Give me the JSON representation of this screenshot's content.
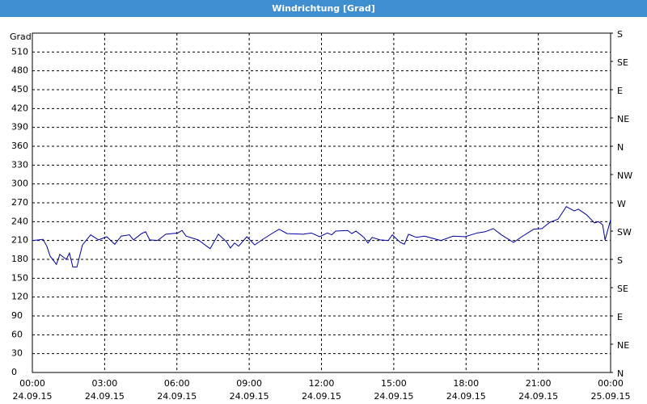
{
  "chart_data": {
    "type": "line",
    "title": "Windrichtung [Grad]",
    "ylabel": "Grad",
    "x": [
      0,
      0.27,
      0.44,
      0.6,
      0.74,
      1.0,
      1.14,
      1.41,
      1.54,
      1.68,
      1.85,
      2.08,
      2.42,
      2.75,
      3.09,
      3.42,
      3.69,
      4.03,
      4.2,
      4.53,
      4.7,
      4.87,
      5.2,
      5.54,
      6.04,
      6.21,
      6.38,
      6.88,
      7.38,
      7.72,
      8.06,
      8.22,
      8.39,
      8.56,
      8.9,
      9.23,
      9.57,
      9.9,
      10.24,
      10.57,
      11.25,
      11.58,
      11.92,
      12.25,
      12.42,
      12.59,
      13.09,
      13.26,
      13.43,
      13.76,
      13.93,
      14.1,
      14.43,
      14.77,
      14.94,
      15.27,
      15.44,
      15.61,
      15.94,
      16.28,
      16.95,
      17.46,
      17.96,
      18.46,
      18.8,
      19.13,
      19.47,
      19.97,
      20.31,
      20.81,
      21.15,
      21.48,
      21.82,
      22.16,
      22.49,
      22.66,
      23.0,
      23.33,
      23.5,
      23.67,
      23.77,
      24.0
    ],
    "series": [
      {
        "name": "Windrichtung",
        "color": "#0000a0",
        "values": [
          210,
          211,
          212,
          201,
          185,
          172,
          188,
          180,
          190,
          168,
          168,
          203,
          219,
          211,
          216,
          204,
          217,
          219,
          211,
          221,
          224,
          211,
          210,
          220,
          222,
          226,
          217,
          211,
          197,
          220,
          208,
          198,
          206,
          201,
          216,
          203,
          212,
          220,
          228,
          221,
          220,
          222,
          216,
          222,
          219,
          225,
          226,
          221,
          225,
          215,
          206,
          215,
          211,
          210,
          219,
          207,
          204,
          220,
          215,
          217,
          210,
          217,
          216,
          222,
          224,
          229,
          219,
          207,
          216,
          228,
          229,
          239,
          244,
          264,
          257,
          260,
          251,
          238,
          240,
          235,
          211,
          243
        ]
      }
    ],
    "xlim": [
      0,
      24
    ],
    "xticks": [
      {
        "value": 0,
        "label": "00:00",
        "date": "24.09.15"
      },
      {
        "value": 3,
        "label": "03:00",
        "date": "24.09.15"
      },
      {
        "value": 6,
        "label": "06:00",
        "date": "24.09.15"
      },
      {
        "value": 9,
        "label": "09:00",
        "date": "24.09.15"
      },
      {
        "value": 12,
        "label": "12:00",
        "date": "24.09.15"
      },
      {
        "value": 15,
        "label": "15:00",
        "date": "24.09.15"
      },
      {
        "value": 18,
        "label": "18:00",
        "date": "24.09.15"
      },
      {
        "value": 21,
        "label": "21:00",
        "date": "24.09.15"
      },
      {
        "value": 24,
        "label": "00:00",
        "date": "25.09.15"
      }
    ],
    "ylim": [
      0,
      540
    ],
    "yticks": [
      0,
      30,
      60,
      90,
      120,
      150,
      180,
      210,
      240,
      270,
      300,
      330,
      360,
      390,
      420,
      450,
      480,
      510
    ],
    "y2lim": [
      0,
      540
    ],
    "y2ticks": [
      {
        "value": 0,
        "label": "N"
      },
      {
        "value": 45,
        "label": "NE"
      },
      {
        "value": 90,
        "label": "E"
      },
      {
        "value": 135,
        "label": "SE"
      },
      {
        "value": 180,
        "label": "S"
      },
      {
        "value": 225,
        "label": "SW"
      },
      {
        "value": 270,
        "label": "W"
      },
      {
        "value": 315,
        "label": "NW"
      },
      {
        "value": 360,
        "label": "N"
      },
      {
        "value": 405,
        "label": "NE"
      },
      {
        "value": 450,
        "label": "E"
      },
      {
        "value": 495,
        "label": "SE"
      },
      {
        "value": 540,
        "label": "S"
      }
    ],
    "grid": true
  }
}
